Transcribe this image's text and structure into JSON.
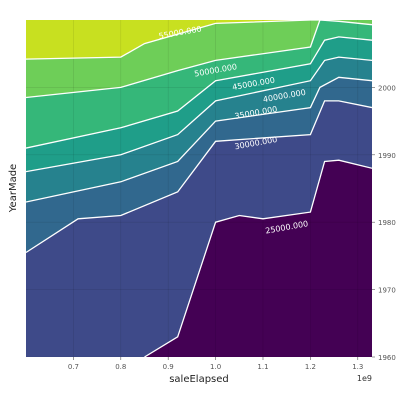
{
  "chart_data": {
    "type": "contour",
    "xlabel": "saleElapsed",
    "ylabel": "YearMade",
    "x_multiplier": "1e9",
    "xlim": [
      0.6,
      1.33
    ],
    "ylim": [
      1960,
      2010
    ],
    "x_ticks": [
      0.7,
      0.8,
      0.9,
      1.0,
      1.1,
      1.2,
      1.3
    ],
    "x_tick_labels": [
      "0.7",
      "0.8",
      "0.9",
      "1.0",
      "1.1",
      "1.2",
      "1.3"
    ],
    "y_ticks": [
      1960,
      1970,
      1980,
      1990,
      2000
    ],
    "y_tick_labels": [
      "1960",
      "1970",
      "1980",
      "1990",
      "2000"
    ],
    "grid": true,
    "colormap": "viridis",
    "level_colors": [
      "#440154",
      "#3e4a89",
      "#31688e",
      "#26828e",
      "#1f9e89",
      "#35b779",
      "#6ece58",
      "#c8e020"
    ],
    "contour_line_color": "#ffffff",
    "contours": [
      {
        "level": 25000,
        "label": "25000.000",
        "label_pos": [
          1.15,
          1979.3
        ],
        "x": [
          0.85,
          0.92,
          1.0,
          1.05,
          1.1,
          1.2,
          1.23,
          1.26,
          1.33
        ],
        "y": [
          1960,
          1963,
          1980,
          1981,
          1980.5,
          1981.5,
          1989,
          1989.2,
          1988
        ]
      },
      {
        "level": 30000,
        "label": "30000.000",
        "label_pos": [
          1.085,
          1991.8
        ],
        "x": [
          0.6,
          0.71,
          0.8,
          0.92,
          1.0,
          1.2,
          1.23,
          1.26,
          1.33
        ],
        "y": [
          1975.5,
          1980.5,
          1981,
          1984.5,
          1992,
          1993,
          1998,
          1998,
          1997
        ]
      },
      {
        "level": 35000,
        "label": "35000.000",
        "label_pos": [
          1.085,
          1996.3
        ],
        "x": [
          0.6,
          0.8,
          0.92,
          1.0,
          1.2,
          1.22,
          1.26,
          1.33
        ],
        "y": [
          1983,
          1986,
          1989,
          1995,
          1997,
          2000,
          2001.5,
          2001
        ]
      },
      {
        "level": 40000,
        "label": "40000.000",
        "label_pos": [
          1.145,
          1998.8
        ],
        "x": [
          0.6,
          0.8,
          0.92,
          1.0,
          1.2,
          1.23,
          1.26,
          1.33
        ],
        "y": [
          1987.5,
          1990,
          1993,
          1998,
          2001,
          2004,
          2004.5,
          2004
        ]
      },
      {
        "level": 45000,
        "label": "45000.000",
        "label_pos": [
          1.08,
          2000.6
        ],
        "x": [
          0.6,
          0.8,
          0.92,
          1.0,
          1.2,
          1.23,
          1.26,
          1.33
        ],
        "y": [
          1991,
          1994,
          1996.5,
          2001,
          2003.5,
          2007,
          2007.5,
          2007
        ]
      },
      {
        "level": 50000,
        "label": "50000.000",
        "label_pos": [
          1.0,
          2002.6
        ],
        "x": [
          0.6,
          0.8,
          0.92,
          1.0,
          1.2,
          1.22,
          1.26,
          1.33
        ],
        "y": [
          1998.5,
          2000,
          2002.5,
          2004,
          2006,
          2010,
          2009.8,
          2009.3
        ]
      },
      {
        "level": 55000,
        "label": "55000.000",
        "label_pos": [
          0.925,
          2008.2
        ],
        "x": [
          0.6,
          0.8,
          0.85,
          1.0,
          1.2,
          1.22
        ],
        "y": [
          2004.2,
          2004.5,
          2006.5,
          2009.5,
          2010,
          2010
        ]
      }
    ]
  }
}
